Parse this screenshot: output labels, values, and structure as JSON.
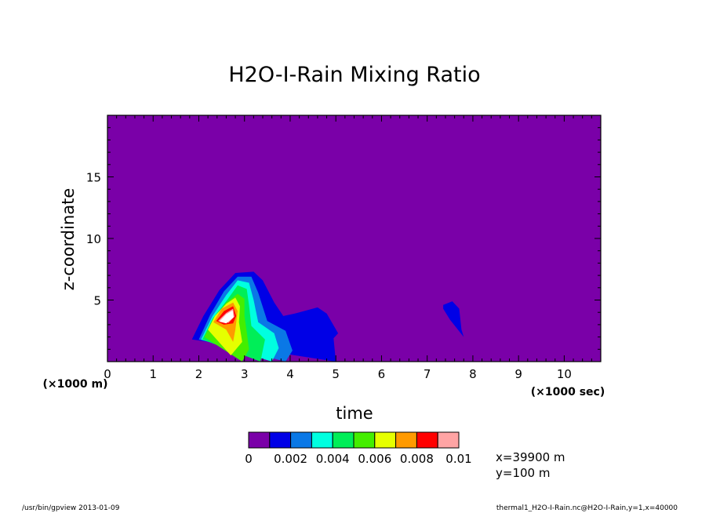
{
  "chart_data": {
    "type": "heatmap",
    "title": "H2O-I-Rain Mixing Ratio",
    "xlabel": "time",
    "ylabel": "z-coordinate",
    "x_unit": "(×1000 sec)",
    "y_unit": "(×1000 m)",
    "xlim": [
      0,
      10.8
    ],
    "ylim": [
      0,
      20
    ],
    "x_ticks": [
      "0",
      "1",
      "2",
      "3",
      "4",
      "5",
      "6",
      "7",
      "8",
      "9",
      "10"
    ],
    "y_ticks": [
      "5",
      "10",
      "15"
    ],
    "background_color": "#7a00a8",
    "colorbar": {
      "colors": [
        "#7a00a8",
        "#0000e6",
        "#0a78e6",
        "#00ffe0",
        "#00ee58",
        "#44ee00",
        "#e6ff00",
        "#ff9a00",
        "#ff0000",
        "#ffa4a4"
      ],
      "labels": [
        "0",
        "0.002",
        "0.004",
        "0.006",
        "0.008",
        "0.01"
      ]
    },
    "levels": [
      {
        "level": 0.0005,
        "color": "#0000e6",
        "polygons": [
          [
            [
              1.85,
              1.8
            ],
            [
              2.1,
              3.7
            ],
            [
              2.45,
              5.8
            ],
            [
              2.8,
              7.2
            ],
            [
              3.2,
              7.3
            ],
            [
              3.4,
              6.6
            ],
            [
              3.65,
              4.8
            ],
            [
              3.85,
              3.7
            ],
            [
              4.1,
              3.9
            ],
            [
              4.6,
              4.4
            ],
            [
              4.8,
              3.9
            ],
            [
              5.05,
              2.3
            ],
            [
              4.95,
              1.9
            ],
            [
              5.0,
              0
            ]
          ],
          [
            [
              7.35,
              4.6
            ],
            [
              7.55,
              4.9
            ],
            [
              7.7,
              4.3
            ],
            [
              7.75,
              2.6
            ],
            [
              7.8,
              2.0
            ],
            [
              7.5,
              3.4
            ],
            [
              7.35,
              4.3
            ]
          ]
        ]
      },
      {
        "level": 0.0015,
        "color": "#0a78e6",
        "polygons": [
          [
            [
              2.0,
              1.8
            ],
            [
              2.25,
              3.8
            ],
            [
              2.55,
              5.7
            ],
            [
              2.85,
              6.9
            ],
            [
              3.15,
              6.9
            ],
            [
              3.3,
              5.6
            ],
            [
              3.5,
              3.3
            ],
            [
              3.9,
              2.5
            ],
            [
              4.05,
              0.9
            ],
            [
              3.9,
              0
            ]
          ]
        ]
      },
      {
        "level": 0.003,
        "color": "#00ffe0",
        "polygons": [
          [
            [
              2.05,
              1.8
            ],
            [
              2.3,
              3.7
            ],
            [
              2.6,
              5.4
            ],
            [
              2.85,
              6.6
            ],
            [
              3.1,
              6.4
            ],
            [
              3.2,
              5.0
            ],
            [
              3.3,
              3.2
            ],
            [
              3.65,
              2.3
            ],
            [
              3.75,
              1.1
            ],
            [
              3.6,
              0
            ]
          ]
        ]
      },
      {
        "level": 0.0045,
        "color": "#00ee58",
        "polygons": [
          [
            [
              2.08,
              1.8
            ],
            [
              2.3,
              3.5
            ],
            [
              2.62,
              5.0
            ],
            [
              2.85,
              6.2
            ],
            [
              3.05,
              5.9
            ],
            [
              3.1,
              4.6
            ],
            [
              3.15,
              2.9
            ],
            [
              3.45,
              1.8
            ],
            [
              3.35,
              0
            ]
          ]
        ]
      },
      {
        "level": 0.0055,
        "color": "#44ee00",
        "polygons": [
          [
            [
              2.12,
              2.0
            ],
            [
              2.32,
              3.4
            ],
            [
              2.6,
              4.8
            ],
            [
              2.85,
              5.5
            ],
            [
              3.0,
              5.1
            ],
            [
              3.0,
              3.7
            ],
            [
              3.05,
              2.4
            ],
            [
              3.1,
              1.0
            ],
            [
              2.95,
              0
            ]
          ]
        ]
      },
      {
        "level": 0.0065,
        "color": "#e6ff00",
        "polygons": [
          [
            [
              2.2,
              2.6
            ],
            [
              2.35,
              3.7
            ],
            [
              2.6,
              4.7
            ],
            [
              2.8,
              5.2
            ],
            [
              2.9,
              4.5
            ],
            [
              2.88,
              3.2
            ],
            [
              2.95,
              1.6
            ],
            [
              2.7,
              0.5
            ]
          ]
        ]
      },
      {
        "level": 0.0075,
        "color": "#ff9a00",
        "polygons": [
          [
            [
              2.32,
              3.2
            ],
            [
              2.5,
              4.3
            ],
            [
              2.75,
              4.8
            ],
            [
              2.85,
              4.1
            ],
            [
              2.8,
              2.6
            ],
            [
              2.75,
              1.6
            ],
            [
              2.6,
              2.6
            ]
          ]
        ]
      },
      {
        "level": 0.0085,
        "color": "#ff0000",
        "polygons": [
          [
            [
              2.38,
              3.3
            ],
            [
              2.55,
              4.1
            ],
            [
              2.75,
              4.5
            ],
            [
              2.82,
              3.7
            ],
            [
              2.75,
              3.1
            ],
            [
              2.55,
              3.0
            ]
          ]
        ]
      },
      {
        "level": 0.0095,
        "color": "#ffa4a4",
        "polygons": [
          [
            [
              2.42,
              3.3
            ],
            [
              2.6,
              3.95
            ],
            [
              2.75,
              4.3
            ],
            [
              2.78,
              3.65
            ],
            [
              2.65,
              3.15
            ]
          ]
        ]
      },
      {
        "level": 0.0105,
        "color": "#ffffff",
        "polygons": [
          [
            [
              2.45,
              3.25
            ],
            [
              2.6,
              3.85
            ],
            [
              2.74,
              4.15
            ],
            [
              2.76,
              3.6
            ],
            [
              2.6,
              3.1
            ]
          ]
        ]
      }
    ]
  },
  "info": {
    "x_value": "x=39900 m",
    "y_value": "y=100 m"
  },
  "footer": {
    "left": "/usr/bin/gpview  2013-01-09",
    "right": "thermal1_H2O-I-Rain.nc@H2O-I-Rain,y=1,x=40000"
  }
}
